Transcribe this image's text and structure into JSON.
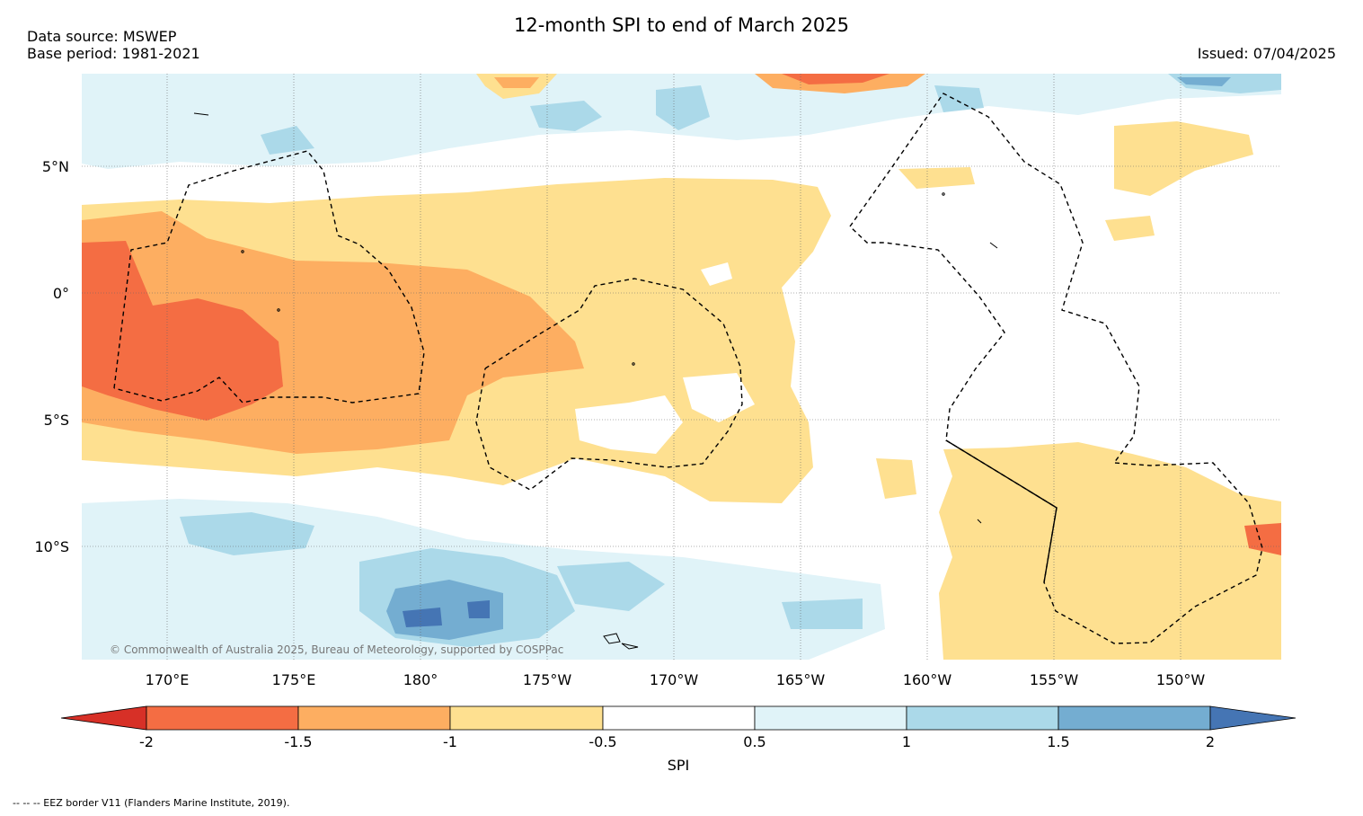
{
  "header": {
    "title": "12-month SPI to end of March 2025",
    "data_source": "Data source: MSWEP",
    "base_period": "Base period: 1981-2021",
    "issued": "Issued: 07/04/2025"
  },
  "map": {
    "lat_labels": [
      "5°N",
      "0°",
      "5°S",
      "10°S"
    ],
    "lon_labels": [
      "170°E",
      "175°E",
      "180°",
      "175°W",
      "170°W",
      "165°W",
      "160°W",
      "155°W",
      "150°W"
    ],
    "copyright": "© Commonwealth of Australia 2025, Bureau of Meteorology, supported by COSPPac"
  },
  "colorbar": {
    "label": "SPI",
    "ticks": [
      "-2",
      "-1.5",
      "-1",
      "-0.5",
      "0.5",
      "1",
      "1.5",
      "2"
    ],
    "colors": [
      "#d73027",
      "#f46d43",
      "#fdae61",
      "#fee090",
      "#ffffff",
      "#e0f3f8",
      "#abd9e9",
      "#74add1",
      "#4575b4"
    ]
  },
  "footnote": "--  --  -- EEZ border V11 (Flanders Marine Institute, 2019)."
}
